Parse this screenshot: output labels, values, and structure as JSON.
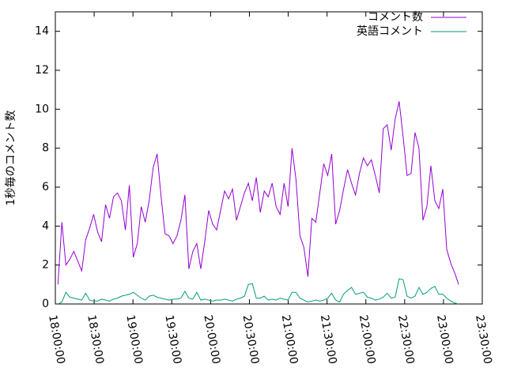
{
  "chart_data": {
    "type": "line",
    "ylabel": "1秒毎のコメント数",
    "xlim": [
      "18:00:00",
      "23:30:00"
    ],
    "xticks": [
      "18:00:00",
      "18:30:00",
      "19:00:00",
      "19:30:00",
      "20:00:00",
      "20:30:00",
      "21:00:00",
      "21:30:00",
      "22:00:00",
      "22:30:00",
      "23:00:00",
      "23:30:00"
    ],
    "ylim": [
      0,
      15
    ],
    "yticks": [
      0,
      2,
      4,
      6,
      8,
      10,
      12,
      14
    ],
    "legend": "top-right",
    "x": [
      "18:02:00",
      "18:05:04",
      "18:08:08",
      "18:11:12",
      "18:14:16",
      "18:17:20",
      "18:20:24",
      "18:23:28",
      "18:26:32",
      "18:29:36",
      "18:32:40",
      "18:35:44",
      "18:38:48",
      "18:41:52",
      "18:44:56",
      "18:48:00",
      "18:51:04",
      "18:54:08",
      "18:57:12",
      "19:00:16",
      "19:03:20",
      "19:06:24",
      "19:09:28",
      "19:12:32",
      "19:15:36",
      "19:18:40",
      "19:21:44",
      "19:24:48",
      "19:27:52",
      "19:30:56",
      "19:34:00",
      "19:37:04",
      "19:40:08",
      "19:43:12",
      "19:46:16",
      "19:49:20",
      "19:52:24",
      "19:55:28",
      "19:58:32",
      "20:01:36",
      "20:04:40",
      "20:07:44",
      "20:10:48",
      "20:13:52",
      "20:16:56",
      "20:20:00",
      "20:23:04",
      "20:26:08",
      "20:29:12",
      "20:32:16",
      "20:35:20",
      "20:38:24",
      "20:41:28",
      "20:44:32",
      "20:47:36",
      "20:50:40",
      "20:53:44",
      "20:56:48",
      "20:59:52",
      "21:02:56",
      "21:06:00",
      "21:09:04",
      "21:12:08",
      "21:15:12",
      "21:18:16",
      "21:21:20",
      "21:24:24",
      "21:27:28",
      "21:30:32",
      "21:33:36",
      "21:36:40",
      "21:39:44",
      "21:42:48",
      "21:45:52",
      "21:48:56",
      "21:52:00",
      "21:55:04",
      "21:58:08",
      "22:01:12",
      "22:04:16",
      "22:07:20",
      "22:10:24",
      "22:13:28",
      "22:16:32",
      "22:19:36",
      "22:22:40",
      "22:25:44",
      "22:28:48",
      "22:31:52",
      "22:34:56",
      "22:38:00",
      "22:41:04",
      "22:44:08",
      "22:47:12",
      "22:50:16",
      "22:53:20",
      "22:56:24",
      "22:59:28",
      "23:02:32",
      "23:05:36",
      "23:08:40",
      "23:11:44"
    ],
    "series": [
      {
        "name": "コメント数",
        "color": "#9400d3",
        "values": [
          1.0,
          4.2,
          2.0,
          2.3,
          2.7,
          2.2,
          1.7,
          3.3,
          3.9,
          4.6,
          3.7,
          3.2,
          5.1,
          4.4,
          5.5,
          5.7,
          5.3,
          3.8,
          6.1,
          2.4,
          3.1,
          5.0,
          4.2,
          5.3,
          7.0,
          7.7,
          5.5,
          3.6,
          3.5,
          3.1,
          3.5,
          4.3,
          5.6,
          1.8,
          2.7,
          3.1,
          1.8,
          3.2,
          4.8,
          4.1,
          3.8,
          4.8,
          5.8,
          5.4,
          5.9,
          4.3,
          5.0,
          5.7,
          6.2,
          5.3,
          6.5,
          4.7,
          5.8,
          5.5,
          6.2,
          5.0,
          4.6,
          6.2,
          5.0,
          8.0,
          6.4,
          3.5,
          2.9,
          1.4,
          4.4,
          4.2,
          5.7,
          7.2,
          6.6,
          7.7,
          4.1,
          4.8,
          5.9,
          6.9,
          6.2,
          5.6,
          6.7,
          7.5,
          7.1,
          7.4,
          6.6,
          5.7,
          9.0,
          9.2,
          7.9,
          9.5,
          10.4,
          8.6,
          6.6,
          6.7,
          8.8,
          8.0,
          4.3,
          5.0,
          7.1,
          5.3,
          4.9,
          5.9,
          2.8,
          2.1,
          1.6,
          1.0
        ]
      },
      {
        "name": "英語コメント",
        "color": "#009e73",
        "values": [
          0.0,
          0.1,
          0.6,
          0.35,
          0.3,
          0.25,
          0.2,
          0.55,
          0.2,
          0.15,
          0.15,
          0.25,
          0.2,
          0.15,
          0.25,
          0.3,
          0.4,
          0.45,
          0.5,
          0.6,
          0.45,
          0.3,
          0.2,
          0.4,
          0.45,
          0.35,
          0.3,
          0.25,
          0.2,
          0.25,
          0.25,
          0.3,
          0.65,
          0.3,
          0.25,
          0.6,
          0.2,
          0.25,
          0.2,
          0.15,
          0.2,
          0.2,
          0.25,
          0.2,
          0.15,
          0.25,
          0.3,
          0.4,
          1.0,
          1.05,
          0.3,
          0.3,
          0.4,
          0.2,
          0.25,
          0.2,
          0.3,
          0.25,
          0.2,
          0.6,
          0.6,
          0.3,
          0.2,
          0.1,
          0.15,
          0.2,
          0.15,
          0.2,
          0.3,
          0.55,
          0.2,
          0.1,
          0.5,
          0.7,
          0.85,
          0.5,
          0.55,
          0.6,
          0.35,
          0.3,
          0.2,
          0.25,
          0.35,
          0.55,
          0.3,
          0.35,
          1.3,
          1.25,
          0.4,
          0.3,
          0.4,
          0.85,
          0.5,
          0.6,
          0.8,
          0.9,
          0.5,
          0.5,
          0.3,
          0.15,
          0.05,
          0.0
        ]
      }
    ]
  }
}
